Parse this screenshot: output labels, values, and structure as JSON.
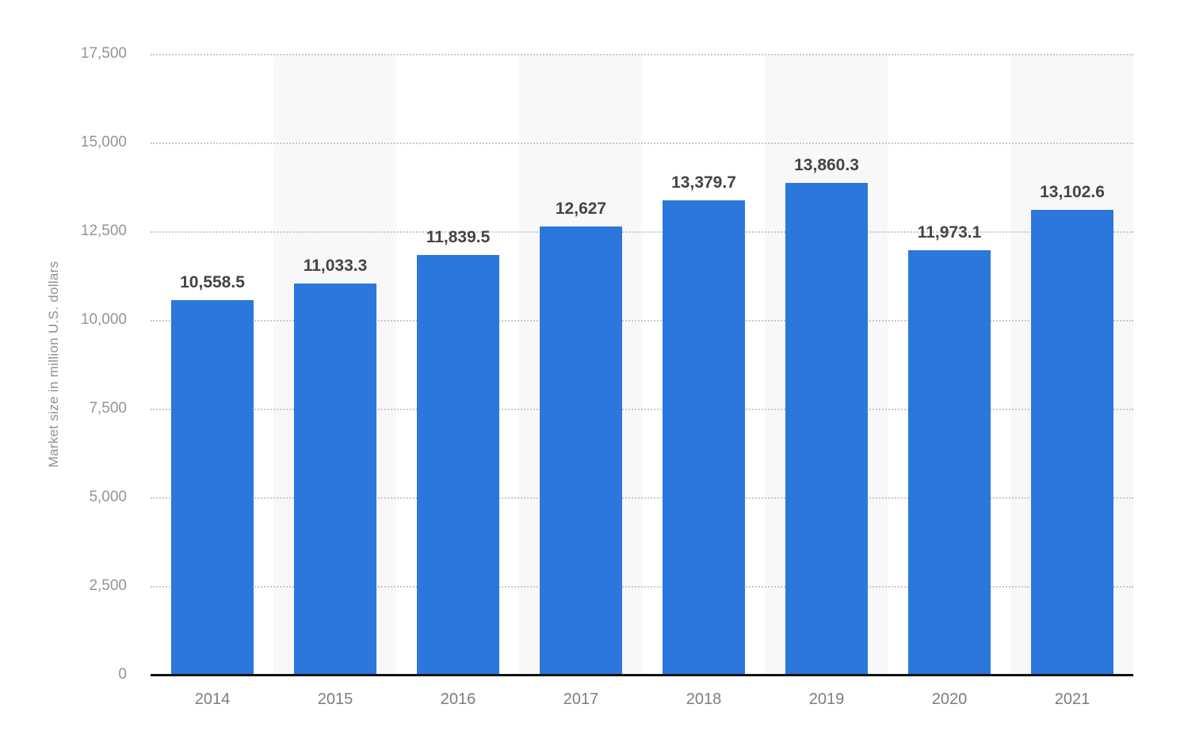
{
  "chart_data": {
    "type": "bar",
    "title": "",
    "categories": [
      "2014",
      "2015",
      "2016",
      "2017",
      "2018",
      "2019",
      "2020",
      "2021"
    ],
    "values": [
      10558.5,
      11033.3,
      11839.5,
      12627,
      13379.7,
      13860.3,
      11973.1,
      13102.6
    ],
    "value_labels": [
      "10,558.5",
      "11,033.3",
      "11,839.5",
      "12,627",
      "13,379.7",
      "13,860.3",
      "11,973.1",
      "13,102.6"
    ],
    "xlabel": "",
    "ylabel": "Market size in million U.S. dollars",
    "ylim": [
      0,
      17500
    ],
    "ytick_step": 2500,
    "ytick_labels": [
      "0",
      "2,500",
      "5,000",
      "7,500",
      "10,000",
      "12,500",
      "15,000",
      "17,500"
    ],
    "grid": "horizontal-dotted",
    "legend_position": "none",
    "stripes": "alternating-category-bands",
    "colors": {
      "bar": "#2b77dc",
      "stripe": "#f8f8f8",
      "gridline": "#c9c9c9",
      "axis_line": "#111111",
      "value_label": "#444444",
      "y_tick_label": "#949494",
      "x_tick_label": "#7e7e7e",
      "axis_title": "#909090"
    }
  }
}
